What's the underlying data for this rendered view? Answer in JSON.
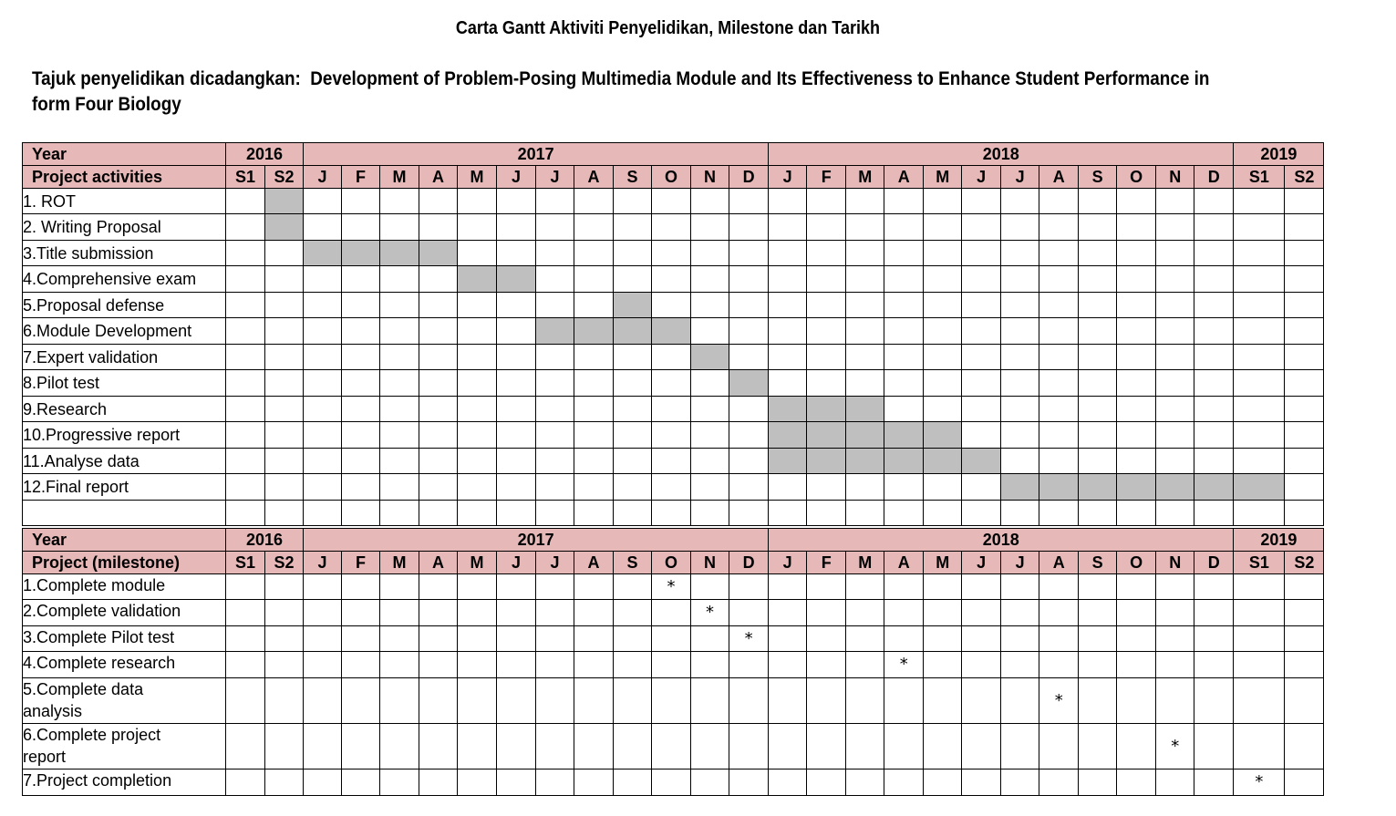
{
  "title": "Carta Gantt Aktiviti Penyelidikan, Milestone dan Tarikh",
  "proposal": {
    "prefix": "Tajuk penyelidikan dicadangkan:",
    "text": "Development of Problem-Posing Multimedia Module and Its Effectiveness to Enhance Student Performance in form Four Biology"
  },
  "header": {
    "year_label": "Year",
    "years": [
      "2016",
      "2017",
      "2018",
      "2019"
    ],
    "periods": [
      "S1",
      "S2",
      "J",
      "F",
      "M",
      "A",
      "M",
      "J",
      "J",
      "A",
      "S",
      "O",
      "N",
      "D",
      "J",
      "F",
      "M",
      "A",
      "M",
      "J",
      "J",
      "A",
      "S",
      "O",
      "N",
      "D",
      "S1",
      "S2"
    ]
  },
  "activities": {
    "header_label": "Project activities",
    "rows": [
      {
        "label": "1. ROT",
        "bar": [
          1,
          1
        ]
      },
      {
        "label": "2. Writing Proposal",
        "bar": [
          1,
          1
        ]
      },
      {
        "label": "3.Title submission",
        "bar": [
          2,
          5
        ]
      },
      {
        "label": "4.Comprehensive exam",
        "bar": [
          6,
          7
        ]
      },
      {
        "label": "5.Proposal defense",
        "bar": [
          10,
          10
        ]
      },
      {
        "label": "6.Module Development",
        "bar": [
          8,
          11
        ]
      },
      {
        "label": "7.Expert validation",
        "bar": [
          12,
          12
        ]
      },
      {
        "label": "8.Pilot test",
        "bar": [
          13,
          13
        ]
      },
      {
        "label": "9.Research",
        "bar": [
          14,
          16
        ]
      },
      {
        "label": "10.Progressive report",
        "bar": [
          14,
          18
        ]
      },
      {
        "label": "11.Analyse data",
        "bar": [
          14,
          19
        ]
      },
      {
        "label": "12.Final report",
        "bar": [
          20,
          26
        ]
      },
      {
        "label": "",
        "bar": null
      }
    ]
  },
  "milestones": {
    "header_label": "Project (milestone)",
    "marker": "*",
    "rows": [
      {
        "label": "1.Complete module",
        "col": 11
      },
      {
        "label": "2.Complete validation",
        "col": 12
      },
      {
        "label": "3.Complete Pilot test",
        "col": 13
      },
      {
        "label": "4.Complete research",
        "col": 17
      },
      {
        "label": "5.Complete data analysis",
        "col": 21
      },
      {
        "label": "6.Complete project report",
        "col": 24
      },
      {
        "label": "7.Project completion",
        "col": 26
      }
    ]
  },
  "colors": {
    "header_bg": "#e6b8b7",
    "bar_fill": "#bfbfbf"
  }
}
